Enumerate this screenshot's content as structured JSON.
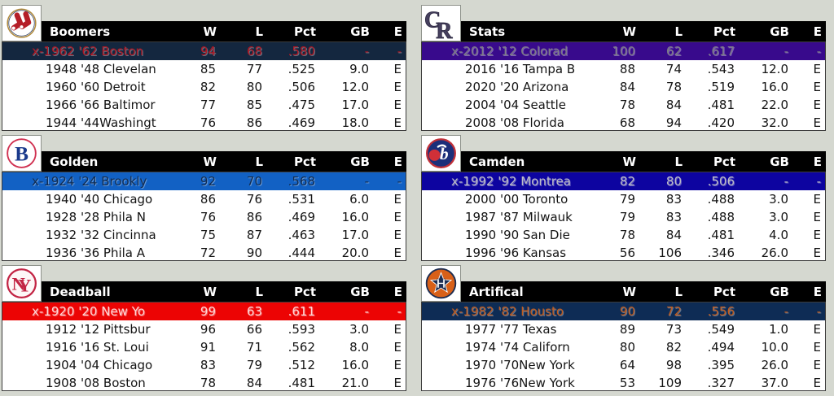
{
  "page": {
    "background": "#d5d8d0",
    "header_bg": "#000000",
    "header_fg": "#ffffff",
    "row_bg": "#ffffff",
    "row_fg": "#141414"
  },
  "columns": {
    "w": "W",
    "l": "L",
    "pct": "Pct",
    "gb": "GB",
    "e": "E"
  },
  "tables": [
    {
      "division": "Boomers",
      "logo": "red-sox",
      "highlight_bg": "#14273f",
      "highlight_fg": "#b01622",
      "rows": [
        {
          "name": "x-1962 '62 Boston",
          "w": "94",
          "l": "68",
          "pct": ".580",
          "gb": "-",
          "e": "-"
        },
        {
          "name": "1948 '48 Clevelan",
          "w": "85",
          "l": "77",
          "pct": ".525",
          "gb": "9.0",
          "e": "E"
        },
        {
          "name": "1960 '60 Detroit",
          "w": "82",
          "l": "80",
          "pct": ".506",
          "gb": "12.0",
          "e": "E"
        },
        {
          "name": "1966 '66 Baltimor",
          "w": "77",
          "l": "85",
          "pct": ".475",
          "gb": "17.0",
          "e": "E"
        },
        {
          "name": "1944 '44Washingt",
          "w": "76",
          "l": "86",
          "pct": ".469",
          "gb": "18.0",
          "e": "E"
        }
      ]
    },
    {
      "division": "Stats",
      "logo": "rockies",
      "highlight_bg": "#380a8c",
      "highlight_fg": "#7d7d85",
      "rows": [
        {
          "name": "x-2012 '12 Colorad",
          "w": "100",
          "l": "62",
          "pct": ".617",
          "gb": "-",
          "e": "-"
        },
        {
          "name": "2016 '16 Tampa B",
          "w": "88",
          "l": "74",
          "pct": ".543",
          "gb": "12.0",
          "e": "E"
        },
        {
          "name": "2020 '20 Arizona",
          "w": "84",
          "l": "78",
          "pct": ".519",
          "gb": "16.0",
          "e": "E"
        },
        {
          "name": "2004 '04 Seattle",
          "w": "78",
          "l": "84",
          "pct": ".481",
          "gb": "22.0",
          "e": "E"
        },
        {
          "name": "2008 '08 Florida",
          "w": "68",
          "l": "94",
          "pct": ".420",
          "gb": "32.0",
          "e": "E"
        }
      ]
    },
    {
      "division": "Golden",
      "logo": "brooklyn",
      "highlight_bg": "#1261c4",
      "highlight_fg": "#122c50",
      "rows": [
        {
          "name": "x-1924 '24 Brookly",
          "w": "92",
          "l": "70",
          "pct": ".568",
          "gb": "-",
          "e": "-"
        },
        {
          "name": "1940 '40 Chicago",
          "w": "86",
          "l": "76",
          "pct": ".531",
          "gb": "6.0",
          "e": "E"
        },
        {
          "name": "1928 '28 Phila N",
          "w": "76",
          "l": "86",
          "pct": ".469",
          "gb": "16.0",
          "e": "E"
        },
        {
          "name": "1932 '32 Cincinna",
          "w": "75",
          "l": "87",
          "pct": ".463",
          "gb": "17.0",
          "e": "E"
        },
        {
          "name": "1936 '36 Phila A",
          "w": "72",
          "l": "90",
          "pct": ".444",
          "gb": "20.0",
          "e": "E"
        }
      ]
    },
    {
      "division": "Camden",
      "logo": "expos",
      "highlight_bg": "#0d04a0",
      "highlight_fg": "#bdbdc6",
      "rows": [
        {
          "name": "x-1992 '92 Montrea",
          "w": "82",
          "l": "80",
          "pct": ".506",
          "gb": "-",
          "e": "-"
        },
        {
          "name": "2000 '00 Toronto",
          "w": "79",
          "l": "83",
          "pct": ".488",
          "gb": "3.0",
          "e": "E"
        },
        {
          "name": "1987 '87 Milwauk",
          "w": "79",
          "l": "83",
          "pct": ".488",
          "gb": "3.0",
          "e": "E"
        },
        {
          "name": "1990 '90 San Die",
          "w": "78",
          "l": "84",
          "pct": ".481",
          "gb": "4.0",
          "e": "E"
        },
        {
          "name": "1996 '96 Kansas",
          "w": "56",
          "l": "106",
          "pct": ".346",
          "gb": "26.0",
          "e": "E"
        }
      ]
    },
    {
      "division": "Deadball",
      "logo": "giants",
      "highlight_bg": "#ec0404",
      "highlight_fg": "#ffd6d6",
      "rows": [
        {
          "name": "x-1920 '20 New Yo",
          "w": "99",
          "l": "63",
          "pct": ".611",
          "gb": "-",
          "e": "-"
        },
        {
          "name": "1912 '12 Pittsbur",
          "w": "96",
          "l": "66",
          "pct": ".593",
          "gb": "3.0",
          "e": "E"
        },
        {
          "name": "1916 '16 St. Loui",
          "w": "91",
          "l": "71",
          "pct": ".562",
          "gb": "8.0",
          "e": "E"
        },
        {
          "name": "1904 '04 Chicago",
          "w": "83",
          "l": "79",
          "pct": ".512",
          "gb": "16.0",
          "e": "E"
        },
        {
          "name": "1908 '08 Boston",
          "w": "78",
          "l": "84",
          "pct": ".481",
          "gb": "21.0",
          "e": "E"
        }
      ]
    },
    {
      "division": "Artifical",
      "logo": "astros",
      "highlight_bg": "#0e2c55",
      "highlight_fg": "#c25c1e",
      "rows": [
        {
          "name": "x-1982 '82 Housto",
          "w": "90",
          "l": "72",
          "pct": ".556",
          "gb": "-",
          "e": "-"
        },
        {
          "name": "1977 '77 Texas",
          "w": "89",
          "l": "73",
          "pct": ".549",
          "gb": "1.0",
          "e": "E"
        },
        {
          "name": "1974 '74 Californ",
          "w": "80",
          "l": "82",
          "pct": ".494",
          "gb": "10.0",
          "e": "E"
        },
        {
          "name": "1970 '70New York",
          "w": "64",
          "l": "98",
          "pct": ".395",
          "gb": "26.0",
          "e": "E"
        },
        {
          "name": "1976 '76New York",
          "w": "53",
          "l": "109",
          "pct": ".327",
          "gb": "37.0",
          "e": "E"
        }
      ]
    }
  ]
}
